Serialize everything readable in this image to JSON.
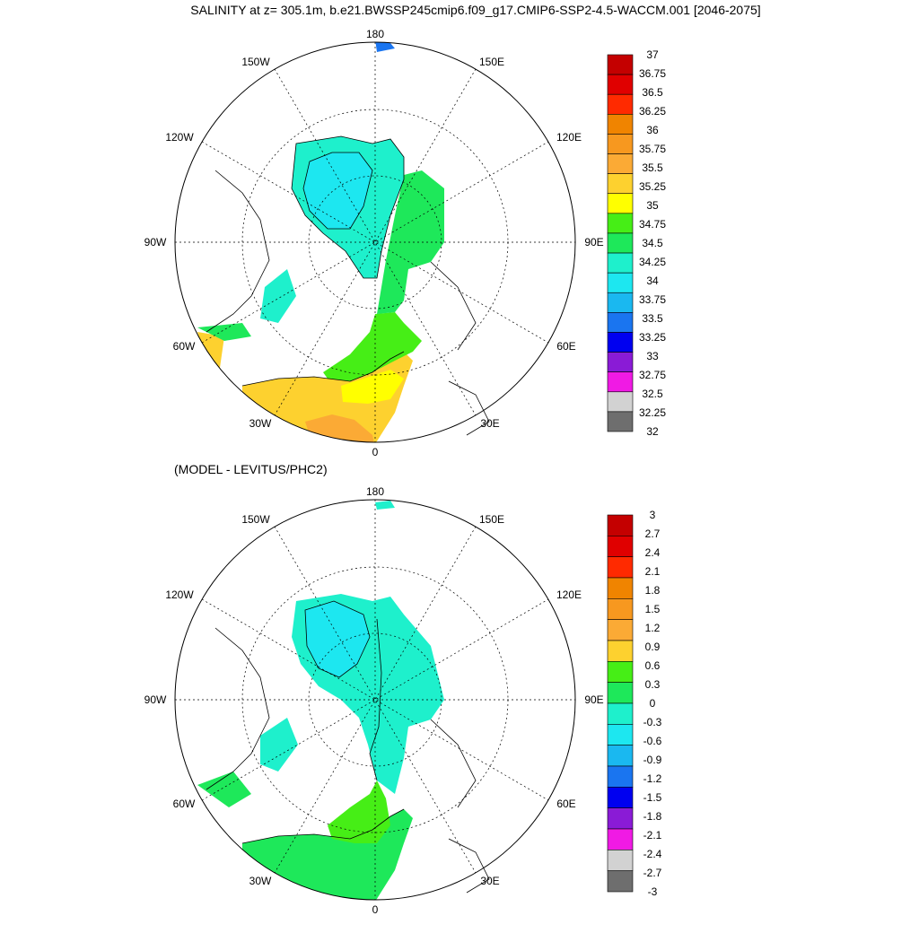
{
  "title": "SALINITY at z= 305.1m, b.e21.BWSSP245cmip6.f09_g17.CMIP6-SSP2-4.5-WACCM.001 [2046-2075]",
  "subtitle": "(MODEL - LEVITUS/PHC2)",
  "maps": [
    {
      "longitude_labels": [
        "180",
        "150W",
        "150E",
        "120W",
        "120E",
        "90W",
        "90E",
        "60W",
        "60E",
        "30W",
        "30E",
        "0"
      ],
      "colorbar": {
        "labels": [
          "37",
          "36.75",
          "36.5",
          "36.25",
          "36",
          "35.75",
          "35.5",
          "35.25",
          "35",
          "34.75",
          "34.5",
          "34.25",
          "34",
          "33.75",
          "33.5",
          "33.25",
          "33",
          "32.75",
          "32.5",
          "32.25",
          "32"
        ],
        "colors": [
          "#c40000",
          "#e00000",
          "#ff2a00",
          "#f08400",
          "#f7981f",
          "#fbaa35",
          "#fdd12f",
          "#ffff00",
          "#46ee16",
          "#1ee85a",
          "#1ef0cc",
          "#1de7f0",
          "#1ab8f0",
          "#1a75f0",
          "#0000f0",
          "#8a1bd6",
          "#f01ae4",
          "#d2d2d2",
          "#6e6e6e"
        ]
      }
    },
    {
      "longitude_labels": [
        "180",
        "150W",
        "150E",
        "120W",
        "120E",
        "90W",
        "90E",
        "60W",
        "60E",
        "30W",
        "30E",
        "0"
      ],
      "colorbar": {
        "labels": [
          "3",
          "2.7",
          "2.4",
          "2.1",
          "1.8",
          "1.5",
          "1.2",
          "0.9",
          "0.6",
          "0.3",
          "0",
          "-0.3",
          "-0.6",
          "-0.9",
          "-1.2",
          "-1.5",
          "-1.8",
          "-2.1",
          "-2.4",
          "-2.7",
          "-3"
        ],
        "colors": [
          "#c40000",
          "#e00000",
          "#ff2a00",
          "#f08400",
          "#f7981f",
          "#fbaa35",
          "#fdd12f",
          "#46ee16",
          "#1ee85a",
          "#1ef0cc",
          "#1de7f0",
          "#1ab8f0",
          "#1a75f0",
          "#0000f0",
          "#8a1bd6",
          "#f01ae4",
          "#d2d2d2",
          "#6e6e6e"
        ]
      }
    }
  ]
}
